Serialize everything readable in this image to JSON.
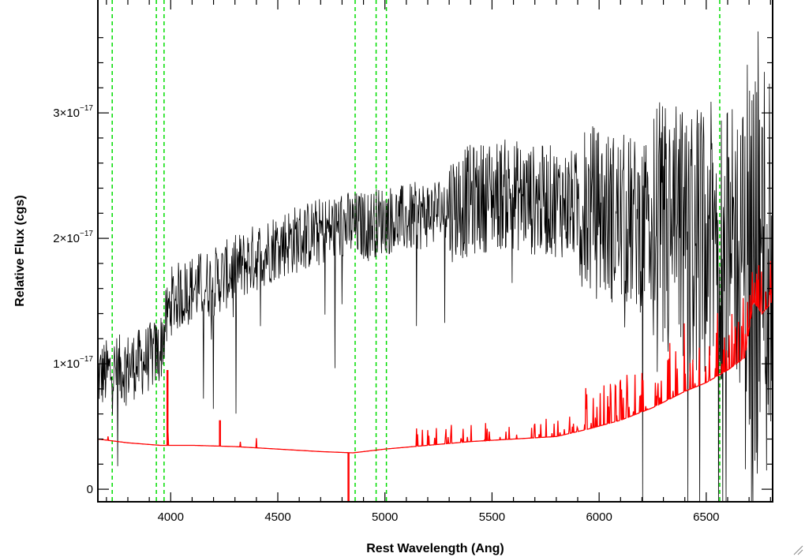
{
  "chart_data": {
    "type": "line",
    "xlabel": "Rest Wavelength (Ang)",
    "ylabel": "Relative Flux (cgs)",
    "xlim": [
      3660,
      6810
    ],
    "ylim": [
      -1e-18,
      3.9e-17
    ],
    "x_ticks": [
      {
        "value": 4000,
        "label": "4000"
      },
      {
        "value": 4500,
        "label": "4500"
      },
      {
        "value": 5000,
        "label": "5000"
      },
      {
        "value": 5500,
        "label": "5500"
      },
      {
        "value": 6000,
        "label": "6000"
      },
      {
        "value": 6500,
        "label": "6500"
      }
    ],
    "y_ticks": [
      {
        "value": 0,
        "mantissa": "0",
        "exponent": ""
      },
      {
        "value": 1e-17,
        "mantissa": "1×10",
        "exponent": "−17"
      },
      {
        "value": 2e-17,
        "mantissa": "2×10",
        "exponent": "−17"
      },
      {
        "value": 3e-17,
        "mantissa": "3×10",
        "exponent": "−17"
      }
    ],
    "emission_line_markers": [
      3727,
      3933,
      3969,
      4861,
      4959,
      5007,
      6563
    ],
    "grid": false,
    "colors": {
      "spectrum": "#000000",
      "error": "#ff0000",
      "markers": "#00dd00"
    },
    "series": [
      {
        "role": "spectrum",
        "color": "#000000",
        "continuum_x": [
          3660,
          3750,
          3850,
          3950,
          4000,
          4100,
          4200,
          4300,
          4400,
          4500,
          4600,
          4700,
          4800,
          4900,
          5000,
          5100,
          5200,
          5300,
          5400,
          5500,
          5600,
          5700,
          5800,
          5900,
          6000,
          6100,
          6200,
          6300,
          6400,
          6500,
          6600,
          6700,
          6810
        ],
        "continuum_y": [
          9e-18,
          9.5e-18,
          1e-17,
          1.1e-17,
          1.5e-17,
          1.6e-17,
          1.65e-17,
          1.75e-17,
          1.85e-17,
          1.95e-17,
          2e-17,
          2.05e-17,
          2.1e-17,
          2.1e-17,
          2.15e-17,
          2.15e-17,
          2.2e-17,
          2.25e-17,
          2.3e-17,
          2.35e-17,
          2.35e-17,
          2.3e-17,
          2.3e-17,
          2.25e-17,
          2.2e-17,
          2.15e-17,
          2.1e-17,
          2e-17,
          2e-17,
          2e-17,
          1.95e-17,
          1.9e-17,
          1.8e-17
        ]
      },
      {
        "role": "error",
        "color": "#ff0000",
        "continuum_x": [
          3660,
          3800,
          3950,
          4100,
          4300,
          4500,
          4700,
          4850,
          5000,
          5200,
          5400,
          5600,
          5800,
          5950,
          6100,
          6250,
          6400,
          6500,
          6600,
          6680,
          6720,
          6760,
          6810
        ],
        "continuum_y": [
          4e-18,
          3.7e-18,
          3.5e-18,
          3.5e-18,
          3.4e-18,
          3.2e-18,
          3e-18,
          2.9e-18,
          3.2e-18,
          3.5e-18,
          3.8e-18,
          4e-18,
          4.2e-18,
          4.8e-18,
          5.5e-18,
          6.5e-18,
          7.8e-18,
          8.5e-18,
          9.5e-18,
          1.05e-17,
          1.5e-17,
          1.4e-17,
          1.5e-17
        ]
      }
    ]
  }
}
